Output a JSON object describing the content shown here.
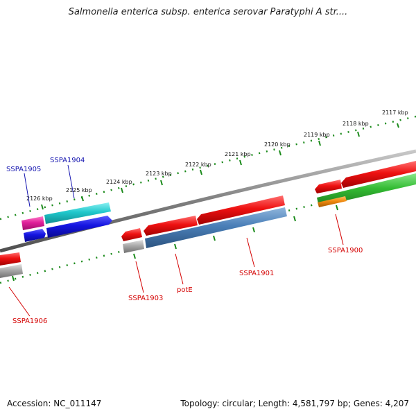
{
  "title": "Salmonella enterica subsp. enterica serovar Paratyphi A str....",
  "footer": {
    "accession": "Accession: NC_011147",
    "stats": "Topology: circular; Length: 4,581,797 bp; Genes: 4,207"
  },
  "ticks": [
    "2117 kbp",
    "2118 kbp",
    "2119 kbp",
    "2120 kbp",
    "2121 kbp",
    "2122 kbp",
    "2123 kbp",
    "2124 kbp",
    "2125 kbp",
    "2126 kbp"
  ],
  "genes": [
    {
      "label": "SSPA1906",
      "color": "#d40000"
    },
    {
      "label": "SSPA1905",
      "color": "#1515b0"
    },
    {
      "label": "SSPA1904",
      "color": "#1515b0"
    },
    {
      "label": "SSPA1903",
      "color": "#d40000"
    },
    {
      "label": "potE",
      "color": "#d40000"
    },
    {
      "label": "SSPA1901",
      "color": "#d40000"
    },
    {
      "label": "SSPA1900",
      "color": "#d40000"
    }
  ],
  "colors": {
    "backbone": "#7f7f7f",
    "tick": "#1a8a1a",
    "red_feature": "#ee1111",
    "blue_feature": "#1414e0",
    "cyan_feature": "#20c8cc",
    "magenta_feature": "#e0209a",
    "steel_feature": "#4a7fb8",
    "green_feature": "#33bb33",
    "orange_feature": "#f08a10",
    "gray_feature": "#a8a8a8"
  }
}
